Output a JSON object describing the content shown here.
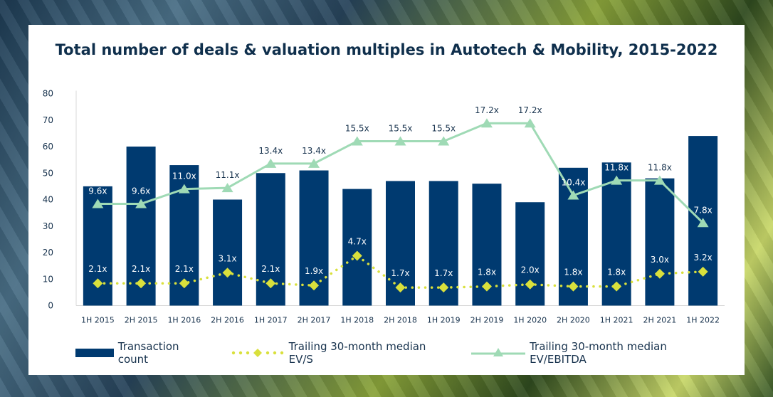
{
  "chart_data": {
    "type": "bar+line",
    "title": "Total number of deals & valuation multiples in Autotech & Mobility, 2015-2022",
    "categories": [
      "1H 2015",
      "2H 2015",
      "1H 2016",
      "2H 2016",
      "1H 2017",
      "2H 2017",
      "1H 2018",
      "2H 2018",
      "1H 2019",
      "2H 2019",
      "1H 2020",
      "2H 2020",
      "1H 2021",
      "2H 2021",
      "1H 2022"
    ],
    "ylim": [
      0,
      80
    ],
    "yticks": [
      "0",
      "10",
      "20",
      "30",
      "40",
      "50",
      "60",
      "70",
      "80"
    ],
    "grid": false,
    "legend_position": "bottom",
    "series": [
      {
        "name": "Transaction count",
        "type": "bar",
        "color": "#003a70",
        "values": [
          45,
          60,
          53,
          40,
          50,
          51,
          44,
          47,
          47,
          46,
          39,
          52,
          54,
          48,
          64
        ]
      },
      {
        "name": "Trailing 30-month median EV/S",
        "type": "line-dotted-diamond",
        "color": "#d9e03c",
        "values": [
          2.1,
          2.1,
          2.1,
          3.1,
          2.1,
          1.9,
          4.7,
          1.7,
          1.7,
          1.8,
          2.0,
          1.8,
          1.8,
          3.0,
          3.2
        ],
        "labels": [
          "2.1x",
          "2.1x",
          "2.1x",
          "3.1x",
          "2.1x",
          "1.9x",
          "4.7x",
          "1.7x",
          "1.7x",
          "1.8x",
          "2.0x",
          "1.8x",
          "1.8x",
          "3.0x",
          "3.2x"
        ]
      },
      {
        "name": "Trailing 30-month median EV/EBITDA",
        "type": "line-triangle",
        "color": "#9fdab5",
        "values": [
          9.6,
          9.6,
          11.0,
          11.1,
          13.4,
          13.4,
          15.5,
          15.5,
          15.5,
          17.2,
          17.2,
          10.4,
          11.8,
          11.8,
          7.8
        ],
        "labels": [
          "9.6x",
          "9.6x",
          "11.0x",
          "11.1x",
          "13.4x",
          "13.4x",
          "15.5x",
          "15.5x",
          "15.5x",
          "17.2x",
          "17.2x",
          "10.4x",
          "11.8x",
          "11.8x",
          "7.8x"
        ]
      }
    ]
  }
}
